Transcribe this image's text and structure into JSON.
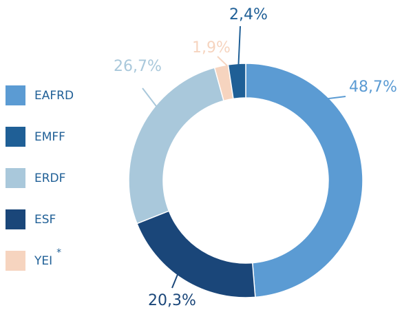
{
  "chart_data": {
    "type": "donut",
    "categories": [
      "EAFRD",
      "ESF",
      "ERDF",
      "YEI",
      "EMFF"
    ],
    "values": [
      48.7,
      20.3,
      26.7,
      1.9,
      2.4
    ],
    "value_labels": [
      "48,7%",
      "20,3%",
      "26,7%",
      "1,9%",
      "2,4%"
    ],
    "colors": [
      "#5b9bd3",
      "#1a4679",
      "#a9c8db",
      "#f6d4bf",
      "#1f5f96"
    ],
    "legend": [
      {
        "name": "EAFRD"
      },
      {
        "name": "EMFF"
      },
      {
        "name": "ERDF"
      },
      {
        "name": "ESF"
      },
      {
        "name": "YEI",
        "note": "*"
      }
    ]
  }
}
